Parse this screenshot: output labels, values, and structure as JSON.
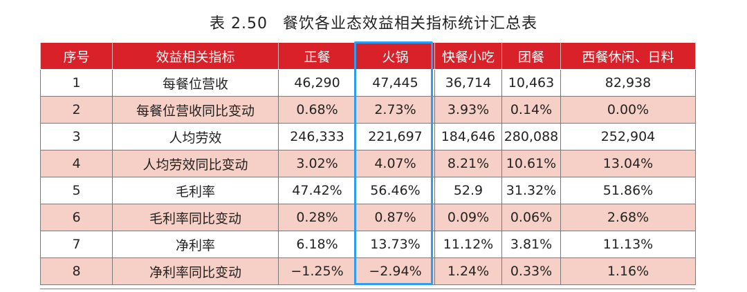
{
  "caption": {
    "number": "表 2.50",
    "title": "餐饮各业态效益相关指标统计汇总表"
  },
  "table": {
    "headers": [
      "序号",
      "效益相关指标",
      "正餐",
      "火锅",
      "快餐小吃",
      "团餐",
      "西餐休闲、日料"
    ],
    "rows": [
      [
        "1",
        "每餐位营收",
        "46,290",
        "47,445",
        "36,714",
        "10,463",
        "82,938"
      ],
      [
        "2",
        "每餐位营收同比变动",
        "0.68%",
        "2.73%",
        "3.93%",
        "0.14%",
        "0.00%"
      ],
      [
        "3",
        "人均劳效",
        "246,333",
        "221,697",
        "184,646",
        "280,088",
        "252,904"
      ],
      [
        "4",
        "人均劳效同比变动",
        "3.02%",
        "4.07%",
        "8.21%",
        "10.61%",
        "13.04%"
      ],
      [
        "5",
        "毛利率",
        "47.42%",
        "56.46%",
        "52.9",
        "31.32%",
        "51.86%"
      ],
      [
        "6",
        "毛利率同比变动",
        "0.28%",
        "0.87%",
        "0.09%",
        "0.06%",
        "2.68%"
      ],
      [
        "7",
        "净利率",
        "6.18%",
        "13.73%",
        "11.12%",
        "3.81%",
        "11.13%"
      ],
      [
        "8",
        "净利率同比变动",
        "−1.25%",
        "−2.94%",
        "1.24%",
        "0.33%",
        "1.16%"
      ]
    ]
  },
  "colors": {
    "header_bg": "#d9212a",
    "stripe_bg": "#f6d0c6",
    "highlight_border": "#2e9cf3"
  }
}
